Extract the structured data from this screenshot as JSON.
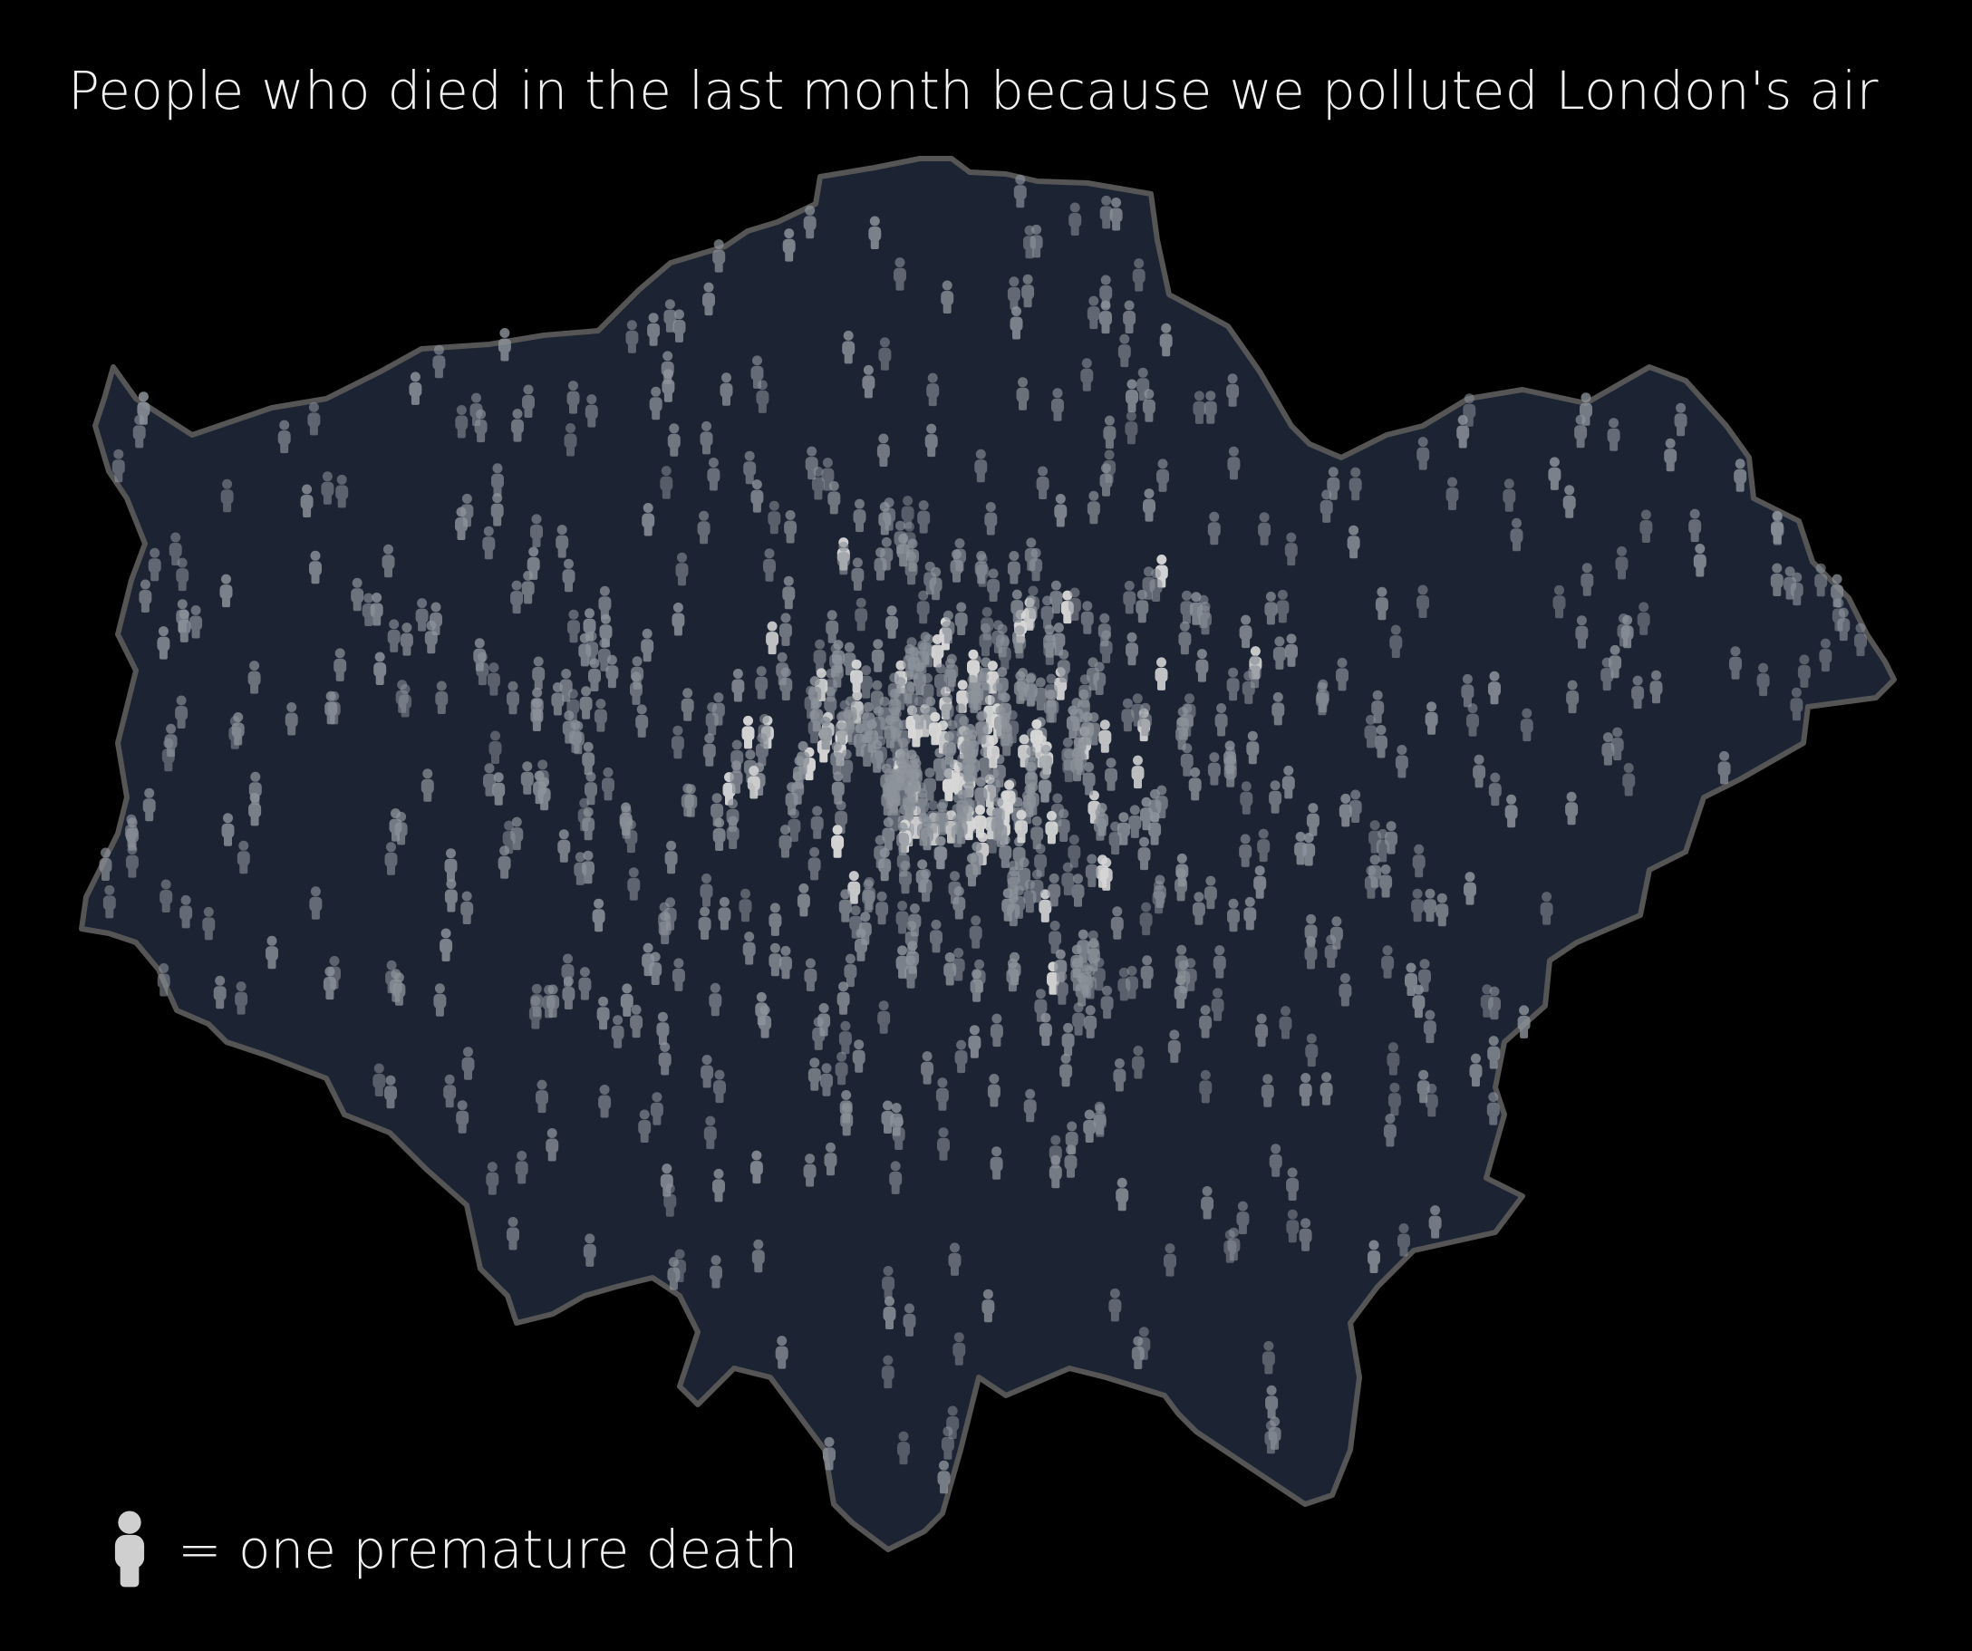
{
  "title": "People who died in the last month because we polluted London's air",
  "legend": {
    "label": "= one premature death",
    "icon": "person-icon"
  },
  "colors": {
    "background": "#000000",
    "map_fill": "#1c2333",
    "map_border": "#555555",
    "icon": "#8e949c",
    "text": "#f2f2f2"
  }
}
